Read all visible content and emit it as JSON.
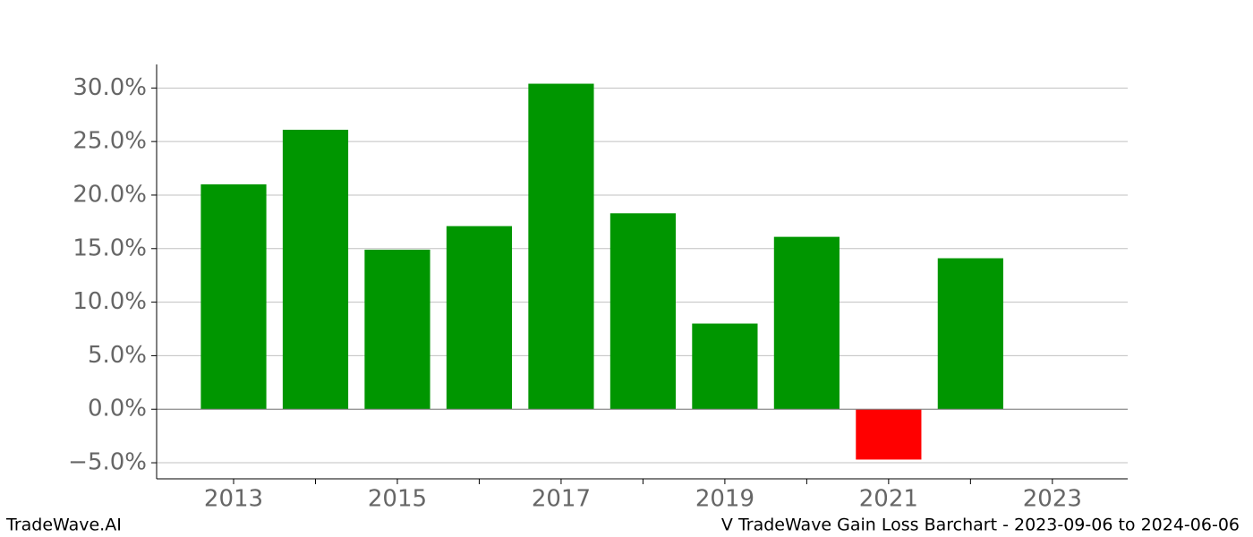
{
  "chart_data": {
    "type": "bar",
    "title": "V TradeWave Gain Loss Barchart - 2023-09-06 to 2024-06-06",
    "watermark": "TradeWave.AI",
    "x": [
      2013,
      2014,
      2015,
      2016,
      2017,
      2018,
      2019,
      2020,
      2021,
      2022
    ],
    "values": [
      21.0,
      26.1,
      14.9,
      17.1,
      30.4,
      18.3,
      8.0,
      16.1,
      -4.7,
      14.1
    ],
    "color": "#009600",
    "negative_color": "#ff0000",
    "xlim": [
      2012.06,
      2023.92
    ],
    "xticks": [
      2013,
      2015,
      2017,
      2019,
      2021,
      2023
    ],
    "xminorticks": [
      2014,
      2016,
      2018,
      2020,
      2022
    ],
    "ylim": [
      -6.5,
      32.2
    ],
    "yticks": [
      {
        "value": -5,
        "label": "−5.0%"
      },
      {
        "value": 0,
        "label": "0.0%"
      },
      {
        "value": 5,
        "label": "5.0%"
      },
      {
        "value": 10,
        "label": "10.0%"
      },
      {
        "value": 15,
        "label": "15.0%"
      },
      {
        "value": 20,
        "label": "20.0%"
      },
      {
        "value": 25,
        "label": "25.0%"
      },
      {
        "value": 30,
        "label": "30.0%"
      }
    ],
    "grid": true
  }
}
